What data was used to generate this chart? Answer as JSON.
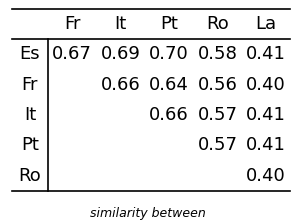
{
  "col_labels": [
    "Fr",
    "It",
    "Pt",
    "Ro",
    "La"
  ],
  "row_labels": [
    "Es",
    "Fr",
    "It",
    "Pt",
    "Ro"
  ],
  "cell_data": [
    [
      "0.67",
      "0.69",
      "0.70",
      "0.58",
      "0.41"
    ],
    [
      "",
      "0.66",
      "0.64",
      "0.56",
      "0.40"
    ],
    [
      "",
      "",
      "0.66",
      "0.57",
      "0.41"
    ],
    [
      "",
      "",
      "",
      "0.57",
      "0.41"
    ],
    [
      "",
      "",
      "",
      "",
      "0.40"
    ]
  ],
  "bg_color": "#ffffff",
  "text_color": "#000000",
  "font_size": 13,
  "header_font_size": 13,
  "caption": "similarity between",
  "caption_font_size": 9,
  "figwidth": 2.96,
  "figheight": 2.22,
  "dpi": 100
}
